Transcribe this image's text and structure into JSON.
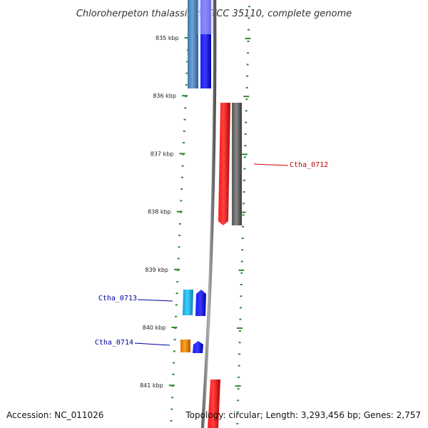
{
  "title": "Chloroherpeton thalassium ATCC 35110, complete genome",
  "footer": {
    "accession": "Accession: NC_011026",
    "summary": "Topology: circular; Length: 3,293,456 bp; Genes: 2,757"
  },
  "ticks": [
    {
      "label": "835 kbp",
      "kbp": 835
    },
    {
      "label": "836 kbp",
      "kbp": 836
    },
    {
      "label": "837 kbp",
      "kbp": 837
    },
    {
      "label": "838 kbp",
      "kbp": 838
    },
    {
      "label": "839 kbp",
      "kbp": 839
    },
    {
      "label": "840 kbp",
      "kbp": 840
    },
    {
      "label": "841 kbp",
      "kbp": 841
    }
  ],
  "gene_labels": [
    {
      "name": "Ctha_0712",
      "color": "#cc0000"
    },
    {
      "name": "Ctha_0713",
      "color": "#000099"
    },
    {
      "name": "Ctha_0714",
      "color": "#000099"
    }
  ],
  "colors": {
    "backbone": "#8a8a8a",
    "ruler_ticks": "#2e8b2e",
    "forward_cds": "#0000ee",
    "forward_gene": "#4a86c0",
    "reverse_cds": "#ee0000",
    "reverse_gene": "#666666",
    "highlight_1": "#19b2e6",
    "highlight_2": "#f08c00"
  }
}
